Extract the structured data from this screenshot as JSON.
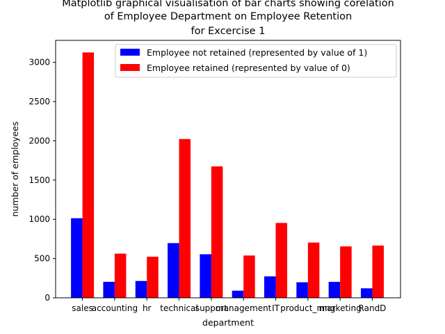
{
  "chart_data": {
    "type": "bar",
    "title_lines": [
      "Matplotlib graphical visualisation of bar charts showing corelation",
      "of Employee Department on Employee Retention",
      "for Excercise 1"
    ],
    "xlabel": "department",
    "ylabel": "number of employees",
    "categories": [
      "sales",
      "accounting",
      "hr",
      "technical",
      "support",
      "management",
      "IT",
      "product_mng",
      "marketing",
      "RandD"
    ],
    "series": [
      {
        "name": "Employee not retained (represented by value of 1)",
        "color": "#0000ff",
        "values": [
          1014,
          204,
          215,
          697,
          555,
          91,
          273,
          198,
          203,
          121
        ]
      },
      {
        "name": "Employee retained (represented by value of 0)",
        "color": "#ff0000",
        "values": [
          3126,
          563,
          524,
          2023,
          1674,
          539,
          954,
          704,
          655,
          666
        ]
      }
    ],
    "yticks": [
      0,
      500,
      1000,
      1500,
      2000,
      2500,
      3000
    ],
    "ylim": [
      0,
      3280
    ],
    "grid": false,
    "legend_position": "top-right"
  }
}
